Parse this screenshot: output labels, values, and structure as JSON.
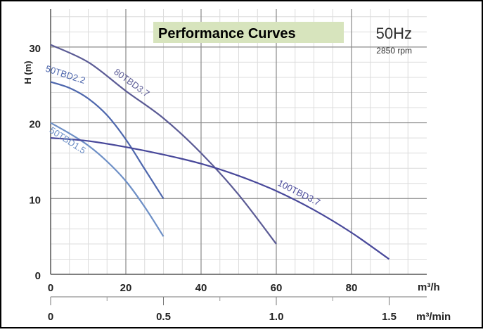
{
  "chart_data": {
    "type": "line",
    "title": "Performance Curves",
    "frequency": "50Hz",
    "speed": "2850 rpm",
    "ylabel": "H (m)",
    "x_unit": "m³/h",
    "x2_unit": "m³/min",
    "xlim": [
      0,
      100
    ],
    "ylim": [
      0,
      35
    ],
    "x_ticks": [
      0,
      20,
      40,
      60,
      80
    ],
    "x2_ticks": [
      {
        "label": "0",
        "x": 0
      },
      {
        "label": "0.5",
        "x": 30
      },
      {
        "label": "1.0",
        "x": 60
      },
      {
        "label": "1.5",
        "x": 90
      }
    ],
    "y_ticks": [
      0,
      10,
      20,
      30
    ],
    "grid": true,
    "series": [
      {
        "name": "50TBD1.5",
        "color": "#6d8fc6",
        "x": [
          0,
          5,
          10,
          15,
          20,
          25,
          30
        ],
        "y": [
          20,
          18.6,
          17.0,
          14.9,
          12.3,
          8.9,
          5.0
        ]
      },
      {
        "name": "50TBD2.2",
        "color": "#4e67ad",
        "x": [
          0,
          5,
          10,
          15,
          20,
          25,
          30
        ],
        "y": [
          25.4,
          24.6,
          23.2,
          21.0,
          17.8,
          13.9,
          10.0
        ]
      },
      {
        "name": "80TBD3.7",
        "color": "#5b5b95",
        "x": [
          0,
          10,
          20,
          30,
          40,
          50,
          60
        ],
        "y": [
          30.3,
          28.0,
          24.2,
          20.6,
          16.0,
          10.5,
          4.0
        ]
      },
      {
        "name": "100TBD3.7",
        "color": "#48489a",
        "x": [
          0,
          10,
          20,
          30,
          40,
          50,
          60,
          70,
          80,
          90
        ],
        "y": [
          18.0,
          17.6,
          16.8,
          15.8,
          14.6,
          13.0,
          11.0,
          8.5,
          5.5,
          2.0
        ]
      }
    ]
  }
}
